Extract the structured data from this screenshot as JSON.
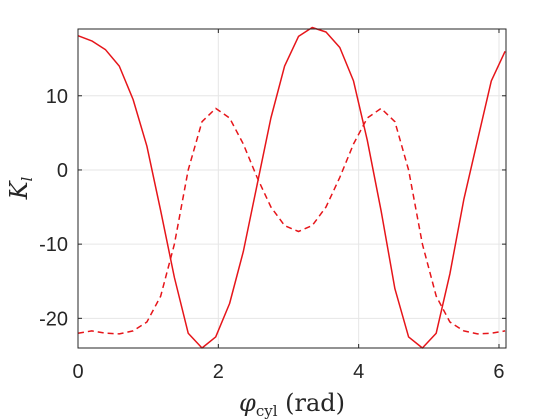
{
  "chart_data": {
    "type": "line",
    "title": "",
    "xlabel": {
      "symbol": "φ",
      "subscript": "cyl",
      "unit": " (rad)"
    },
    "ylabel": {
      "symbol": "K",
      "subscript": "l"
    },
    "xlim": [
      0,
      6.1
    ],
    "ylim": [
      -24,
      19
    ],
    "xticks": [
      0,
      2,
      4,
      6
    ],
    "yticks": [
      -20,
      -10,
      0,
      10
    ],
    "xtick_labels": [
      "0",
      "2",
      "4",
      "6"
    ],
    "ytick_labels": [
      "-20",
      "-10",
      "0",
      "10"
    ],
    "grid": true,
    "legend": "none",
    "x": [
      0,
      0.196,
      0.393,
      0.589,
      0.785,
      0.982,
      1.178,
      1.374,
      1.571,
      1.767,
      1.963,
      2.16,
      2.356,
      2.553,
      2.749,
      2.945,
      3.142,
      3.338,
      3.534,
      3.731,
      3.927,
      4.123,
      4.32,
      4.516,
      4.712,
      4.909,
      5.105,
      5.301,
      5.498,
      5.694,
      5.89,
      6.087
    ],
    "series": [
      {
        "color": "#e6151a",
        "dash": "solid",
        "values": [
          18.1,
          17.4,
          16.2,
          14,
          9.5,
          3.2,
          -5.5,
          -14.5,
          -22,
          -24,
          -22.5,
          -18,
          -11,
          -2,
          7,
          14,
          18,
          19.2,
          18.6,
          16.5,
          12,
          4,
          -5.5,
          -16,
          -22.5,
          -24,
          -22,
          -14,
          -4,
          4,
          12,
          16
        ]
      },
      {
        "color": "#e6151a",
        "dash": "dashed",
        "values": [
          -22,
          -21.7,
          -22,
          -22.1,
          -21.7,
          -20.5,
          -17,
          -10,
          0,
          6.5,
          8.3,
          7,
          3.5,
          -1,
          -5,
          -7.5,
          -8.3,
          -7.5,
          -5,
          -1,
          3.5,
          7,
          8.3,
          6.5,
          0,
          -10,
          -17,
          -20.5,
          -21.7,
          -22.1,
          -22,
          -21.7
        ]
      }
    ]
  }
}
